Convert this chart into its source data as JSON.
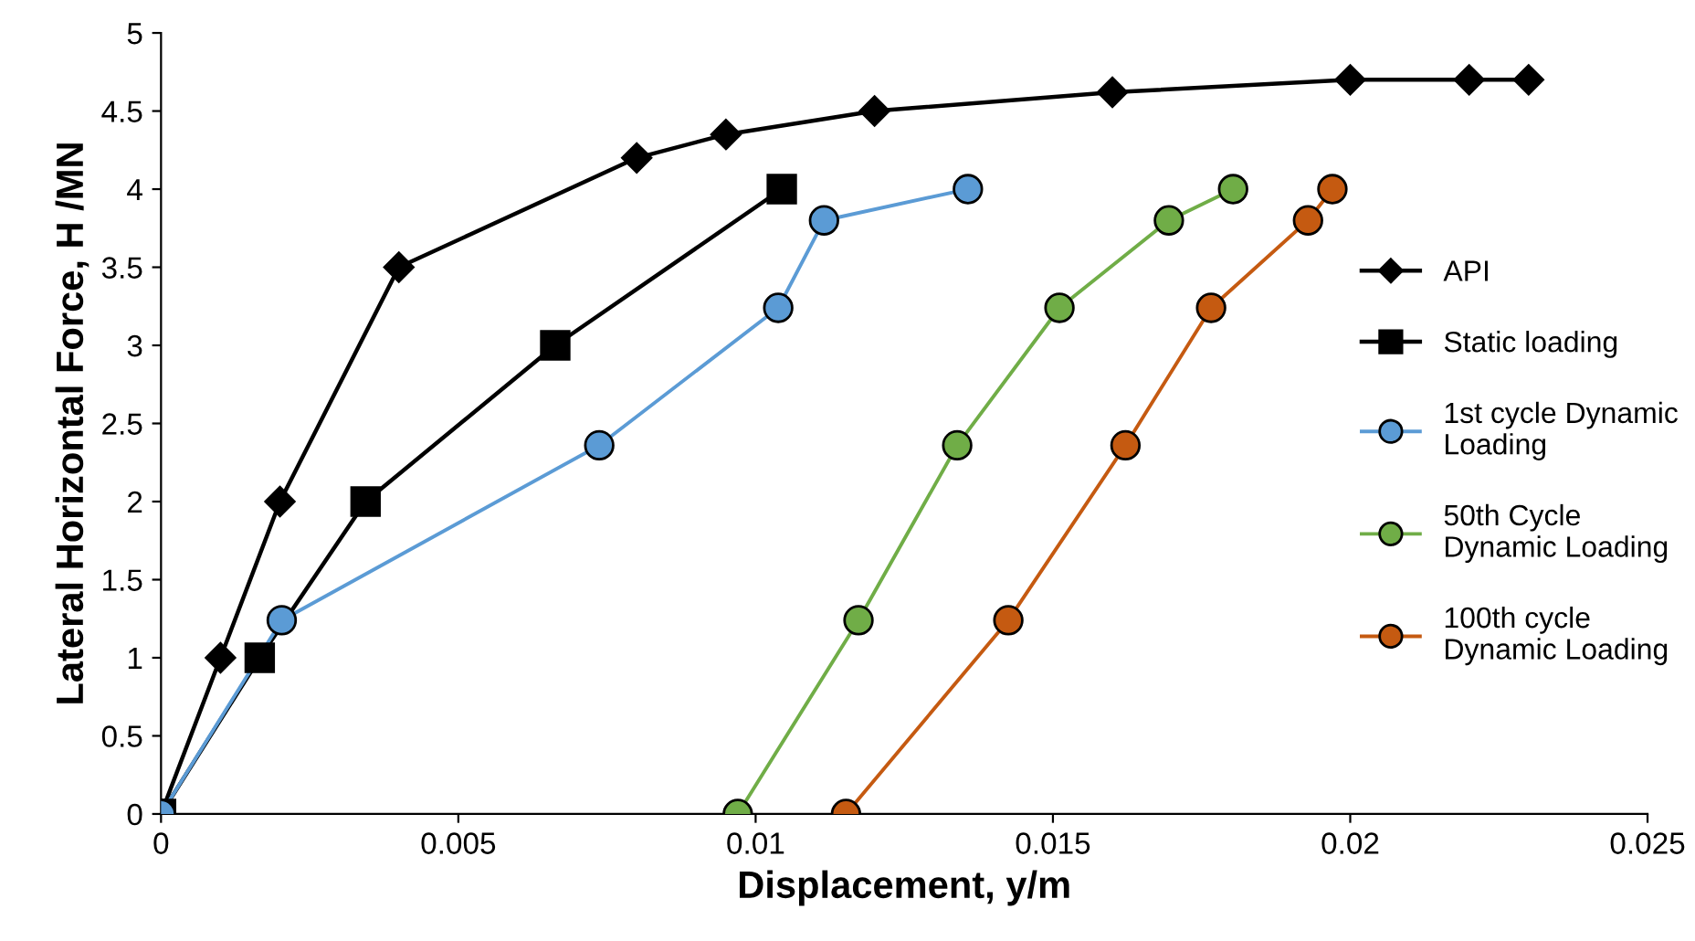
{
  "chart_data": {
    "type": "line",
    "xlabel": "Displacement, y/m",
    "ylabel": "Lateral Horizontal Force, H /MN",
    "xlim": [
      0,
      0.025
    ],
    "xticks": [
      0,
      0.005,
      0.01,
      0.015,
      0.02,
      0.025
    ],
    "ylim": [
      0,
      5
    ],
    "yticks": [
      0,
      0.5,
      1,
      1.5,
      2,
      2.5,
      3,
      3.5,
      4,
      4.5,
      5
    ],
    "grid": false,
    "legend": "right",
    "series": [
      {
        "name": "API",
        "color": "#000000",
        "marker": "diamond",
        "x": [
          0,
          0.001,
          0.002,
          0.004,
          0.008,
          0.0095,
          0.012,
          0.016,
          0.02,
          0.022,
          0.023
        ],
        "values": [
          0,
          1,
          2,
          3.5,
          4.2,
          4.35,
          4.5,
          4.62,
          4.7,
          4.7,
          4.7
        ]
      },
      {
        "name": "Static loading",
        "color": "#000000",
        "marker": "square",
        "x": [
          0,
          0.00166,
          0.00344,
          0.00663,
          0.01044
        ],
        "values": [
          0,
          1,
          2,
          3,
          4
        ]
      },
      {
        "name": "1st cycle Dynamic\nLoading",
        "color": "#5b9bd5",
        "marker": "circle",
        "x": [
          0,
          0.00203,
          0.00737,
          0.01038,
          0.01115,
          0.01357
        ],
        "values": [
          0,
          1.24,
          2.36,
          3.24,
          3.8,
          4.0
        ]
      },
      {
        "name": "50th Cycle\nDynamic Loading",
        "color": "#70ad47",
        "marker": "circle",
        "x": [
          0.0097,
          0.01173,
          0.01339,
          0.01511,
          0.01695,
          0.01803
        ],
        "values": [
          0,
          1.24,
          2.36,
          3.24,
          3.8,
          4.0
        ]
      },
      {
        "name": "100th cycle\nDynamic Loading",
        "color": "#c55a11",
        "marker": "circle",
        "x": [
          0.01152,
          0.01425,
          0.01622,
          0.01766,
          0.01929,
          0.0197
        ],
        "values": [
          0,
          1.24,
          2.36,
          3.24,
          3.8,
          4.0
        ]
      }
    ]
  }
}
